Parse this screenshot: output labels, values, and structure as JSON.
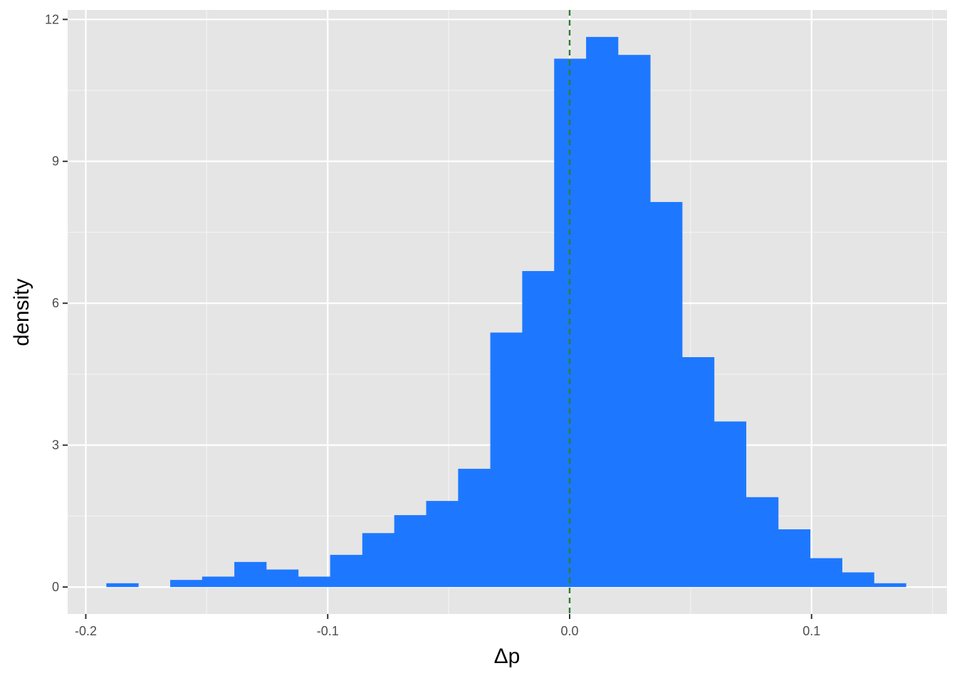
{
  "chart_data": {
    "type": "bar",
    "subtype": "histogram",
    "xlabel": "Δp",
    "ylabel": "density",
    "xlim": [
      -0.2075,
      0.156
    ],
    "ylim": [
      -0.57,
      12.2
    ],
    "x_major_ticks": [
      -0.2,
      -0.1,
      0.0,
      0.1
    ],
    "x_tick_labels": [
      "-0.2",
      "-0.1",
      "0.0",
      "0.1"
    ],
    "y_major_ticks": [
      0,
      3,
      6,
      9,
      12
    ],
    "y_tick_labels": [
      "0",
      "3",
      "6",
      "9",
      "12"
    ],
    "grid": true,
    "bin_width": 0.01322,
    "bins": [
      {
        "x0": -0.1915,
        "x1": -0.1783,
        "density": 0.08
      },
      {
        "x0": -0.1783,
        "x1": -0.1651,
        "density": 0.0
      },
      {
        "x0": -0.1651,
        "x1": -0.1519,
        "density": 0.15
      },
      {
        "x0": -0.1519,
        "x1": -0.1386,
        "density": 0.22
      },
      {
        "x0": -0.1386,
        "x1": -0.1254,
        "density": 0.53
      },
      {
        "x0": -0.1254,
        "x1": -0.1122,
        "density": 0.37
      },
      {
        "x0": -0.1122,
        "x1": -0.099,
        "density": 0.22
      },
      {
        "x0": -0.099,
        "x1": -0.0857,
        "density": 0.68
      },
      {
        "x0": -0.0857,
        "x1": -0.0725,
        "density": 1.14
      },
      {
        "x0": -0.0725,
        "x1": -0.0593,
        "density": 1.52
      },
      {
        "x0": -0.0593,
        "x1": -0.0461,
        "density": 1.82
      },
      {
        "x0": -0.0461,
        "x1": -0.0328,
        "density": 2.5
      },
      {
        "x0": -0.0328,
        "x1": -0.0196,
        "density": 5.38
      },
      {
        "x0": -0.0196,
        "x1": -0.0064,
        "density": 6.68
      },
      {
        "x0": -0.0064,
        "x1": 0.0068,
        "density": 11.17
      },
      {
        "x0": 0.0068,
        "x1": 0.02,
        "density": 11.63
      },
      {
        "x0": 0.02,
        "x1": 0.0333,
        "density": 11.25
      },
      {
        "x0": 0.0333,
        "x1": 0.0465,
        "density": 8.14
      },
      {
        "x0": 0.0465,
        "x1": 0.0597,
        "density": 4.86
      },
      {
        "x0": 0.0597,
        "x1": 0.0729,
        "density": 3.5
      },
      {
        "x0": 0.0729,
        "x1": 0.0862,
        "density": 1.9
      },
      {
        "x0": 0.0862,
        "x1": 0.0994,
        "density": 1.22
      },
      {
        "x0": 0.0994,
        "x1": 0.1126,
        "density": 0.61
      },
      {
        "x0": 0.1126,
        "x1": 0.1258,
        "density": 0.31
      },
      {
        "x0": 0.1258,
        "x1": 0.139,
        "density": 0.08
      }
    ],
    "reference_line": {
      "x": 0.0,
      "style": "dashed",
      "color": "#2e7d32"
    },
    "colors": {
      "bar_fill": "#1e78ff",
      "panel_background": "#e5e5e5",
      "grid_major": "#ffffff",
      "grid_minor": "#f2f2f2",
      "tick_text": "#4d4d4d",
      "tick_mark": "#333333"
    }
  }
}
